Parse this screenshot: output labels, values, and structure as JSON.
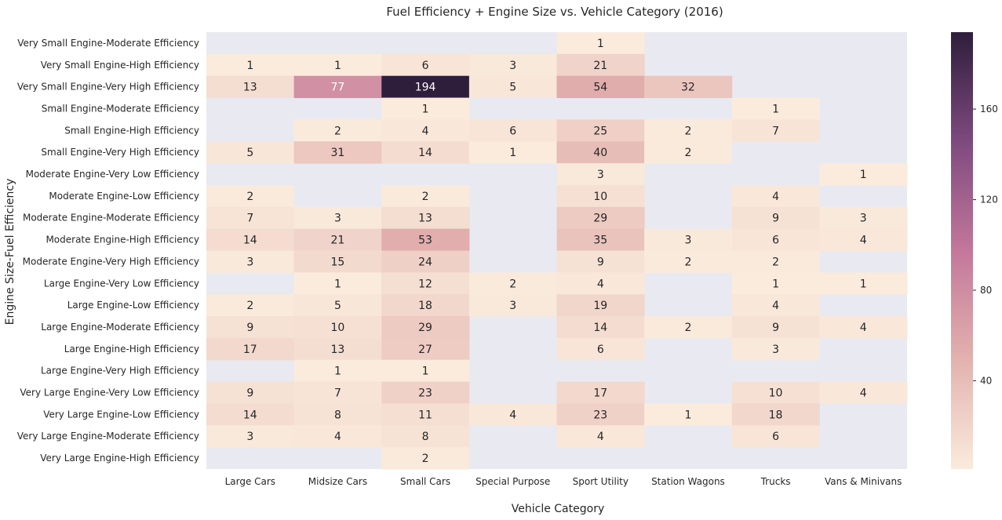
{
  "chart_data": {
    "type": "heatmap",
    "title": "Fuel Efficiency + Engine Size vs. Vehicle Category (2016)",
    "xlabel": "Vehicle Category",
    "ylabel": "Engine Size-Fuel Efficiency",
    "x_categories": [
      "Large Cars",
      "Midsize Cars",
      "Small Cars",
      "Special Purpose",
      "Sport Utility",
      "Station Wagons",
      "Trucks",
      "Vans & Minivans"
    ],
    "y_categories": [
      "Very Small Engine-Moderate Efficiency",
      "Very Small Engine-High Efficiency",
      "Very Small Engine-Very High Efficiency",
      "Small Engine-Moderate Efficiency",
      "Small Engine-High Efficiency",
      "Small Engine-Very High Efficiency",
      "Moderate Engine-Very Low Efficiency",
      "Moderate Engine-Low Efficiency",
      "Moderate Engine-Moderate Efficiency",
      "Moderate Engine-High Efficiency",
      "Moderate Engine-Very High Efficiency",
      "Large Engine-Very Low Efficiency",
      "Large Engine-Low Efficiency",
      "Large Engine-Moderate Efficiency",
      "Large Engine-High Efficiency",
      "Large Engine-Very High Efficiency",
      "Very Large Engine-Very Low Efficiency",
      "Very Large Engine-Low Efficiency",
      "Very Large Engine-Moderate Efficiency",
      "Very Large Engine-High Efficiency"
    ],
    "values": [
      [
        null,
        null,
        null,
        null,
        1,
        null,
        null,
        null
      ],
      [
        1,
        1,
        6,
        3,
        21,
        null,
        null,
        null
      ],
      [
        13,
        77,
        194,
        5,
        54,
        32,
        null,
        null
      ],
      [
        null,
        null,
        1,
        null,
        null,
        null,
        1,
        null
      ],
      [
        null,
        2,
        4,
        6,
        25,
        2,
        7,
        null
      ],
      [
        5,
        31,
        14,
        1,
        40,
        2,
        null,
        null
      ],
      [
        null,
        null,
        null,
        null,
        3,
        null,
        null,
        1
      ],
      [
        2,
        null,
        2,
        null,
        10,
        null,
        4,
        null
      ],
      [
        7,
        3,
        13,
        null,
        29,
        null,
        9,
        3
      ],
      [
        14,
        21,
        53,
        null,
        35,
        3,
        6,
        4
      ],
      [
        3,
        15,
        24,
        null,
        9,
        2,
        2,
        null
      ],
      [
        null,
        1,
        12,
        2,
        4,
        null,
        1,
        1
      ],
      [
        2,
        5,
        18,
        3,
        19,
        null,
        4,
        null
      ],
      [
        9,
        10,
        29,
        null,
        14,
        2,
        9,
        4
      ],
      [
        17,
        13,
        27,
        null,
        6,
        null,
        3,
        null
      ],
      [
        null,
        1,
        1,
        null,
        null,
        null,
        null,
        null
      ],
      [
        9,
        7,
        23,
        null,
        17,
        null,
        10,
        4
      ],
      [
        14,
        8,
        11,
        4,
        23,
        1,
        18,
        null
      ],
      [
        3,
        4,
        8,
        null,
        4,
        null,
        6,
        null
      ],
      [
        null,
        null,
        2,
        null,
        null,
        null,
        null,
        null
      ]
    ],
    "colorbar": {
      "range": [
        1,
        194
      ],
      "ticks": [
        40,
        80,
        120,
        160
      ]
    },
    "colors": {
      "missing": "#e9e9f1",
      "low": "#faebdd",
      "mid": "#c3779b",
      "high": "#2e1e3b",
      "text_dark": "#262626",
      "text_light": "#ffffff"
    }
  }
}
